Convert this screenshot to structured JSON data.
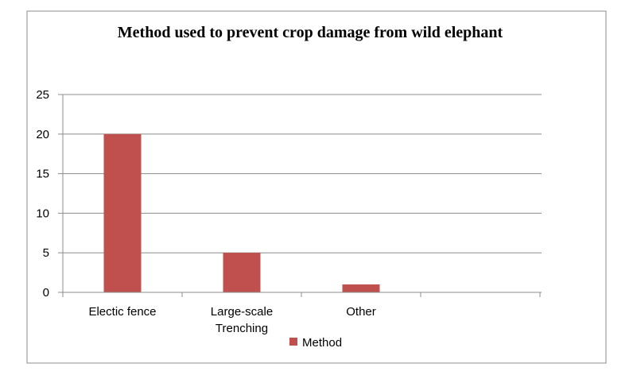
{
  "chart_data": {
    "type": "bar",
    "title": "Method used to prevent crop damage from wild elephant",
    "categories": [
      "Electic fence",
      "Large-scale Trenching",
      "Other"
    ],
    "category_lines": [
      [
        "Electic fence"
      ],
      [
        "Large-scale",
        "Trenching"
      ],
      [
        "Other"
      ]
    ],
    "series": [
      {
        "name": "Method",
        "values": [
          20,
          5,
          1
        ],
        "color": "#c0504d"
      }
    ],
    "xlabel": "",
    "ylabel": "",
    "ylim": [
      0,
      25
    ],
    "yticks": [
      0,
      5,
      10,
      15,
      20,
      25
    ],
    "grid": true,
    "legend": "bottom"
  }
}
